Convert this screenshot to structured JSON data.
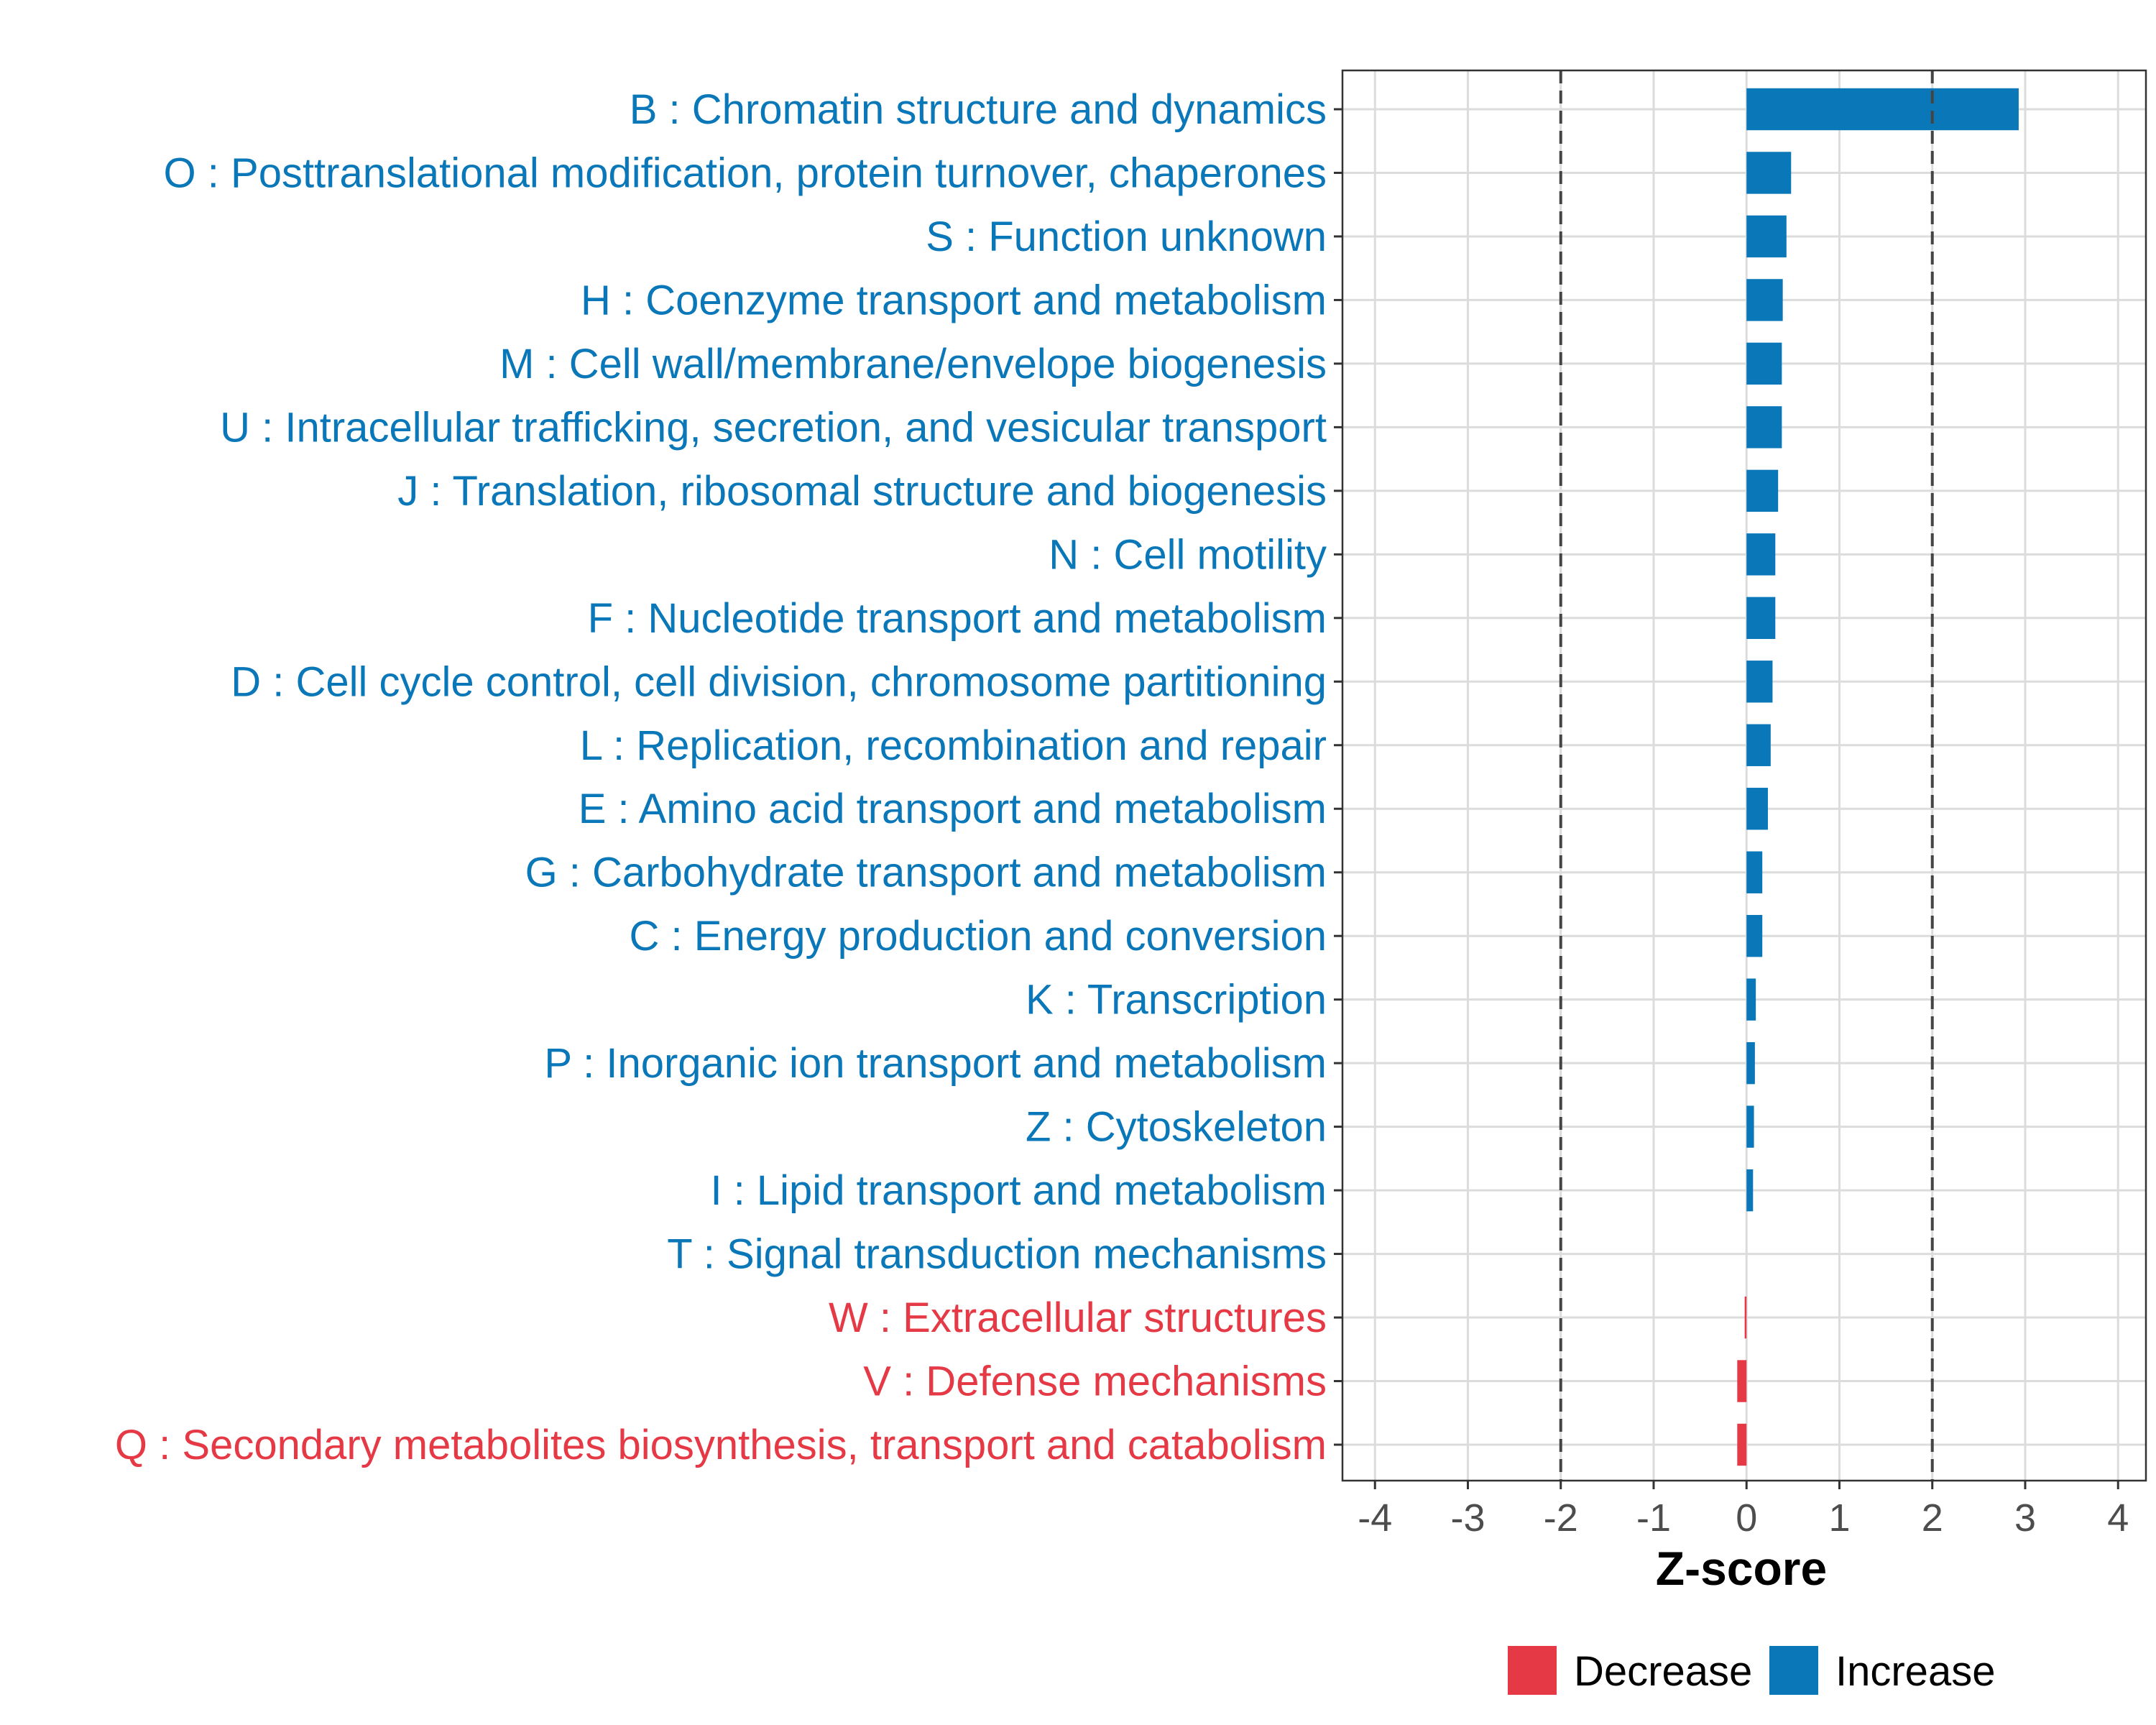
{
  "chart_data": {
    "type": "bar",
    "orientation": "horizontal",
    "xlabel": "Z-score",
    "ylabel": "",
    "xlim": [
      -4.35,
      4.3
    ],
    "xticks": [
      -4,
      -3,
      -2,
      -1,
      0,
      1,
      2,
      3,
      4
    ],
    "xtick_labels": [
      "-4",
      "-3",
      "-2",
      "-1",
      "0",
      "1",
      "2",
      "3",
      "4"
    ],
    "reference_lines": [
      -2,
      2
    ],
    "grid": true,
    "categories": [
      "B : Chromatin structure and dynamics",
      "O : Posttranslational modification, protein turnover, chaperones",
      "S : Function unknown",
      "H : Coenzyme transport and metabolism",
      "M : Cell wall/membrane/envelope biogenesis",
      "U : Intracellular trafficking, secretion, and vesicular transport",
      "J : Translation, ribosomal structure and biogenesis",
      "N : Cell motility",
      "F : Nucleotide transport and metabolism",
      "D : Cell cycle control, cell division, chromosome partitioning",
      "L : Replication, recombination and repair",
      "E : Amino acid transport and metabolism",
      "G : Carbohydrate transport and metabolism",
      "C : Energy production and conversion",
      "K : Transcription",
      "P : Inorganic ion transport and metabolism",
      "Z : Cytoskeleton",
      "I : Lipid transport and metabolism",
      "T : Signal transduction mechanisms",
      "W : Extracellular structures",
      "V : Defense mechanisms",
      "Q : Secondary metabolites biosynthesis, transport and catabolism"
    ],
    "values": [
      2.93,
      0.48,
      0.43,
      0.39,
      0.38,
      0.38,
      0.34,
      0.31,
      0.31,
      0.28,
      0.26,
      0.23,
      0.17,
      0.17,
      0.1,
      0.09,
      0.08,
      0.07,
      0.0,
      -0.02,
      -0.1,
      -0.1
    ],
    "groups": [
      "Increase",
      "Increase",
      "Increase",
      "Increase",
      "Increase",
      "Increase",
      "Increase",
      "Increase",
      "Increase",
      "Increase",
      "Increase",
      "Increase",
      "Increase",
      "Increase",
      "Increase",
      "Increase",
      "Increase",
      "Increase",
      "Increase",
      "Decrease",
      "Decrease",
      "Decrease"
    ],
    "legend": {
      "placement": "bottom",
      "entries": [
        {
          "label": "Decrease",
          "color": "#e63946"
        },
        {
          "label": "Increase",
          "color": "#0a77b8"
        }
      ]
    }
  }
}
